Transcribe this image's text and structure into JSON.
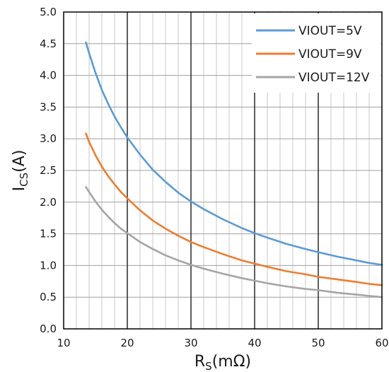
{
  "chart_data": {
    "type": "line",
    "xlabel": {
      "main": "R",
      "sub": "S",
      "rest": "(mΩ)"
    },
    "ylabel": {
      "main": "I",
      "sub": "CS",
      "rest": "(A)"
    },
    "xlim": [
      10,
      60
    ],
    "ylim": [
      0,
      5
    ],
    "x_ticks": [
      "10",
      "20",
      "30",
      "40",
      "50",
      "60"
    ],
    "y_ticks": [
      "0.0",
      "0.5",
      "1.0",
      "1.5",
      "2.0",
      "2.5",
      "3.0",
      "3.5",
      "4.0",
      "4.5",
      "5.0"
    ],
    "grid": "major and minor",
    "legend_position": "top-right",
    "series": [
      {
        "name": "VIOUT=5V",
        "color": "#5b9bd5",
        "x": [
          13.5,
          14,
          15,
          16,
          17,
          18,
          19,
          20,
          22,
          24,
          26,
          28,
          30,
          32,
          35,
          38,
          40,
          42,
          45,
          48,
          50,
          53,
          56,
          58,
          60
        ],
        "y": [
          4.52,
          4.35,
          4.04,
          3.77,
          3.55,
          3.35,
          3.18,
          3.02,
          2.75,
          2.51,
          2.32,
          2.15,
          2.01,
          1.89,
          1.73,
          1.59,
          1.51,
          1.44,
          1.34,
          1.26,
          1.21,
          1.14,
          1.08,
          1.04,
          1.01
        ]
      },
      {
        "name": "VIOUT=9V",
        "color": "#ed7d31",
        "x": [
          13.5,
          14,
          15,
          16,
          17,
          18,
          19,
          20,
          22,
          24,
          26,
          28,
          30,
          32,
          35,
          38,
          40,
          42,
          45,
          48,
          50,
          53,
          56,
          58,
          60
        ],
        "y": [
          3.08,
          2.95,
          2.74,
          2.56,
          2.41,
          2.28,
          2.16,
          2.06,
          1.87,
          1.71,
          1.58,
          1.47,
          1.37,
          1.29,
          1.18,
          1.08,
          1.03,
          0.98,
          0.91,
          0.86,
          0.82,
          0.78,
          0.74,
          0.71,
          0.69
        ]
      },
      {
        "name": "VIOUT=12V",
        "color": "#a5a5a5",
        "x": [
          13.5,
          14,
          15,
          16,
          17,
          18,
          19,
          20,
          22,
          24,
          26,
          28,
          30,
          32,
          35,
          38,
          40,
          42,
          45,
          48,
          50,
          53,
          56,
          58,
          60
        ],
        "y": [
          2.24,
          2.16,
          2.01,
          1.88,
          1.77,
          1.67,
          1.58,
          1.51,
          1.37,
          1.26,
          1.16,
          1.08,
          1.01,
          0.95,
          0.87,
          0.8,
          0.76,
          0.72,
          0.67,
          0.63,
          0.61,
          0.57,
          0.54,
          0.52,
          0.5
        ]
      }
    ]
  }
}
